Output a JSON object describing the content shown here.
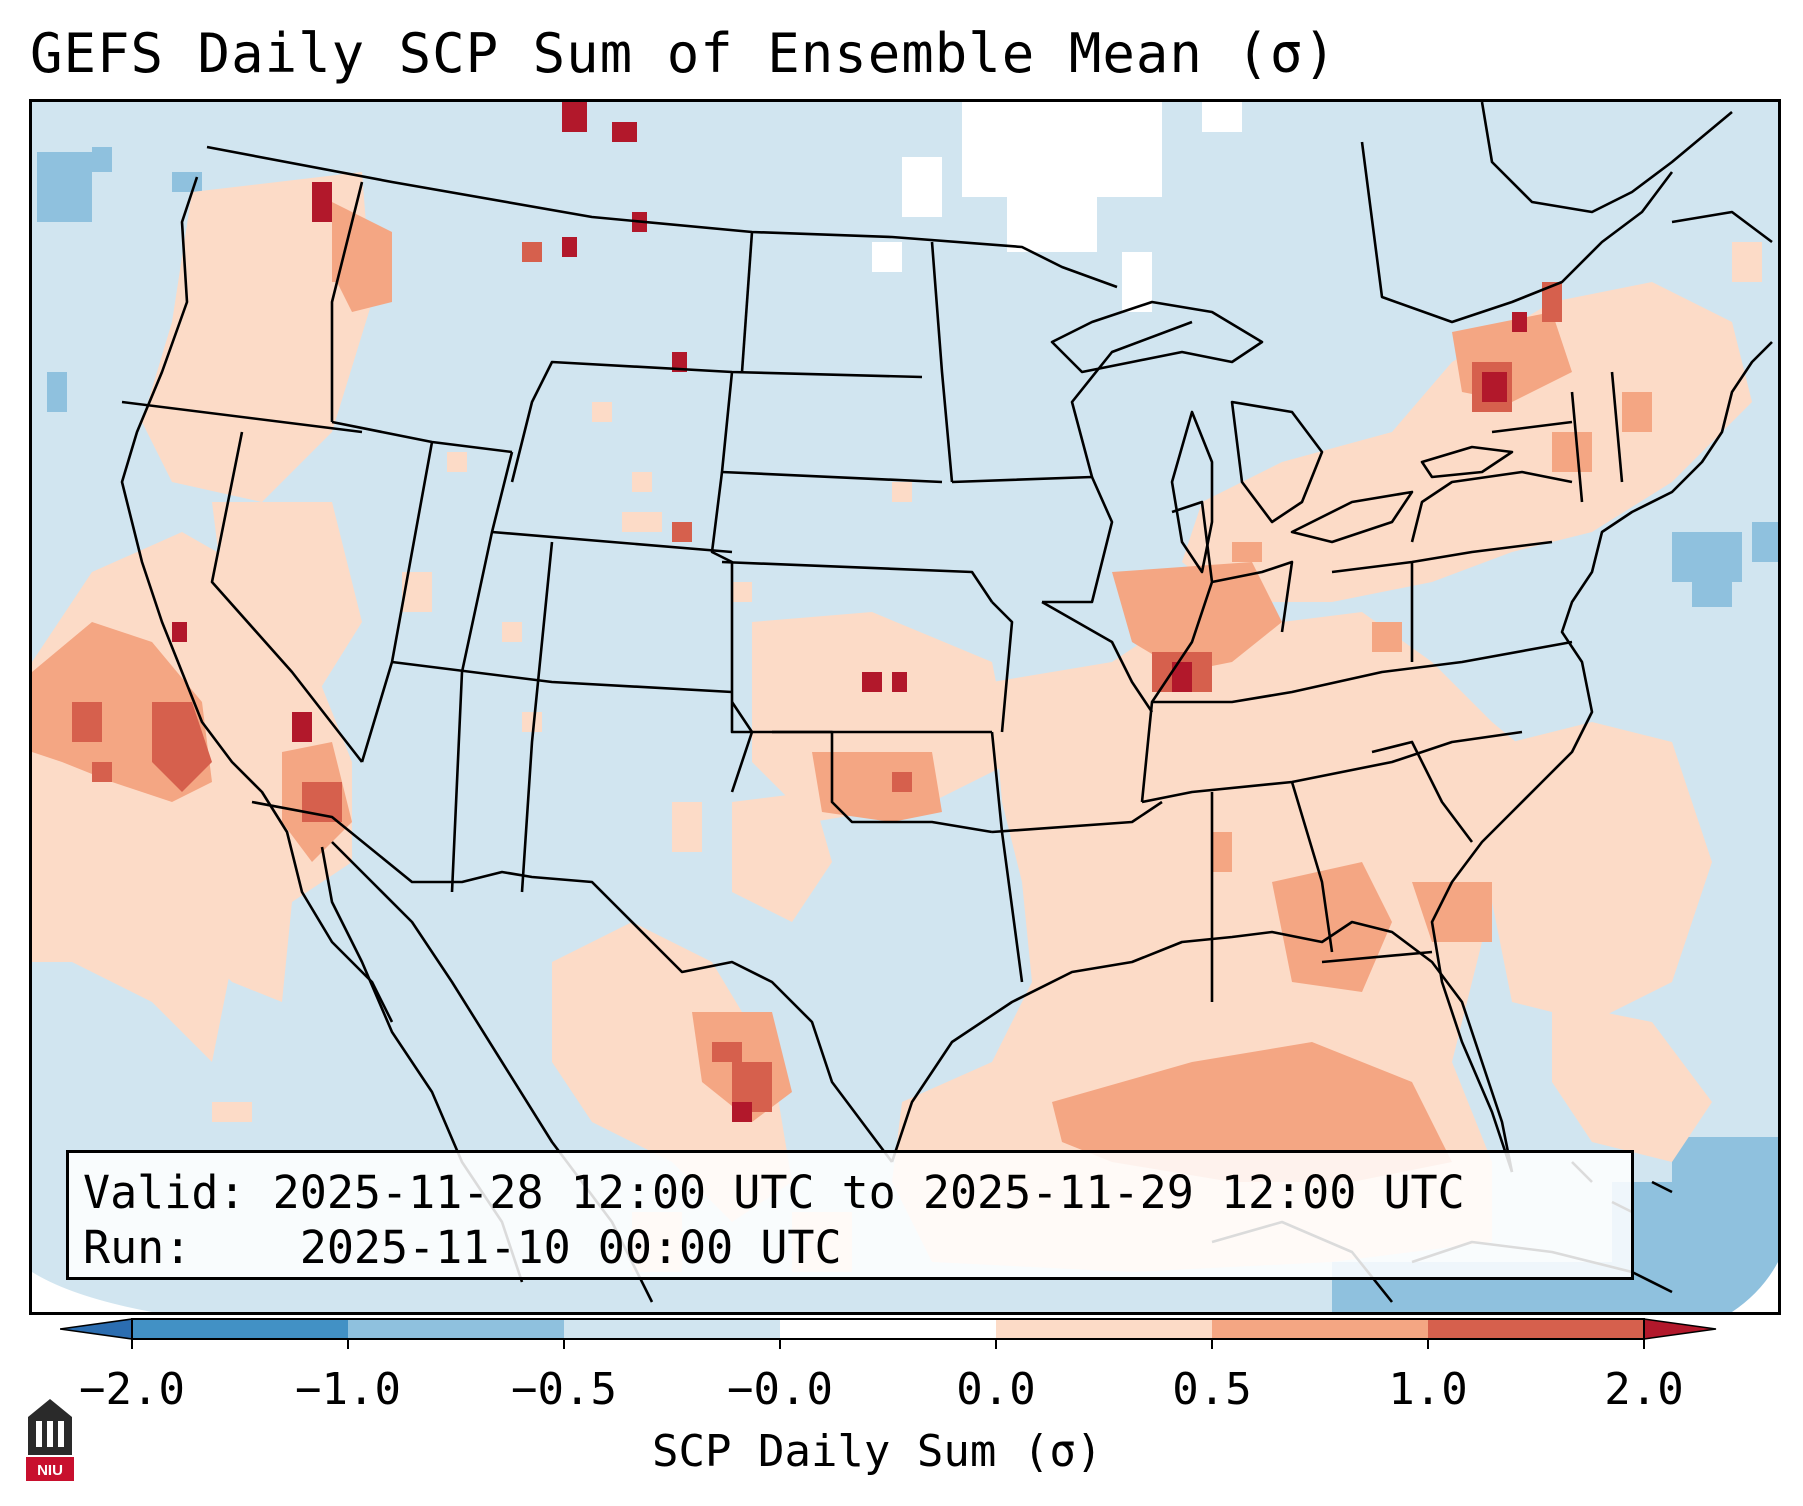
{
  "title": "GEFS Daily SCP Sum of Ensemble Mean (σ)",
  "info": {
    "valid_key": "Valid:",
    "valid_value": "2025-11-28 12:00 UTC to 2025-11-29 12:00 UTC",
    "run_key": "Run:",
    "run_value": "2025-11-10 00:00 UTC"
  },
  "colorbar": {
    "label": "SCP Daily Sum (σ)",
    "ticks": [
      "−2.0",
      "−1.0",
      "−0.5",
      "−0.0",
      "0.0",
      "0.5",
      "1.0",
      "2.0"
    ],
    "bins": [
      {
        "range": "< -2.0",
        "color": "#2b6db0"
      },
      {
        "range": "-2.0 to -1.0",
        "color": "#4291c5"
      },
      {
        "range": "-1.0 to -0.5",
        "color": "#8fc1de"
      },
      {
        "range": "-0.5 to -0.0",
        "color": "#d1e5f0"
      },
      {
        "range": "-0.0 to 0.0",
        "color": "#ffffff"
      },
      {
        "range": "0.0 to 0.5",
        "color": "#fcdbc7"
      },
      {
        "range": "0.5 to 1.0",
        "color": "#f4a683"
      },
      {
        "range": "1.0 to 2.0",
        "color": "#d6604d"
      },
      {
        "range": "> 2.0",
        "color": "#b2182b"
      }
    ]
  },
  "logo": {
    "text": "NIU"
  },
  "colors": {
    "background_anomaly": "#d1e5f0",
    "low_positive": "#fcdbc7",
    "mid_positive": "#f4a683",
    "high_positive": "#d6604d",
    "extreme_positive": "#b2182b",
    "negative": "#8fc1de"
  }
}
